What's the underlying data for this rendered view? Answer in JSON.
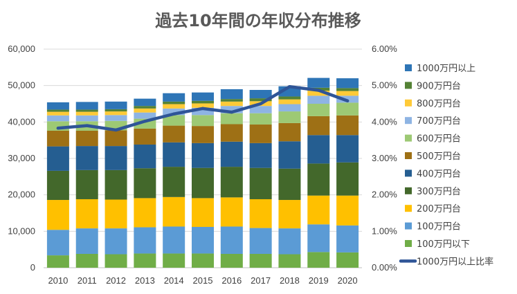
{
  "chart_data": {
    "type": "bar",
    "subtype": "stacked-bar-with-line",
    "title": "過去10年間の年収分布推移",
    "categories": [
      "2010",
      "2011",
      "2012",
      "2013",
      "2014",
      "2015",
      "2016",
      "2017",
      "2018",
      "2019",
      "2020"
    ],
    "series": [
      {
        "name": "100万円以下",
        "color": "#70AD47",
        "values": [
          3400,
          3800,
          3700,
          3900,
          3900,
          3900,
          3800,
          3800,
          3700,
          4300,
          4200
        ]
      },
      {
        "name": "100万円台",
        "color": "#5B9BD5",
        "values": [
          7000,
          7000,
          7100,
          7200,
          7400,
          7300,
          7500,
          7100,
          7100,
          7600,
          7400
        ]
      },
      {
        "name": "200万円台",
        "color": "#FFC000",
        "values": [
          8200,
          8000,
          7900,
          8000,
          8100,
          7900,
          8000,
          7900,
          7800,
          7900,
          8200
        ]
      },
      {
        "name": "300万円台",
        "color": "#43682B",
        "values": [
          8000,
          8000,
          8100,
          8200,
          8300,
          8300,
          8400,
          8600,
          8600,
          8800,
          9100
        ]
      },
      {
        "name": "400万円台",
        "color": "#255E91",
        "values": [
          6700,
          6600,
          6600,
          6500,
          6700,
          6800,
          6900,
          6800,
          7500,
          7800,
          7500
        ]
      },
      {
        "name": "500万円台",
        "color": "#9E7015",
        "values": [
          4300,
          4200,
          4300,
          4400,
          4600,
          4700,
          4800,
          5100,
          5000,
          5200,
          5400
        ]
      },
      {
        "name": "600万円台",
        "color": "#9DC974",
        "values": [
          2600,
          2600,
          2600,
          2700,
          2900,
          3000,
          3000,
          3100,
          3200,
          3400,
          3500
        ]
      },
      {
        "name": "700万円台",
        "color": "#8EB4E3",
        "values": [
          1600,
          1600,
          1600,
          1700,
          1800,
          2000,
          2000,
          2000,
          2000,
          2200,
          1900
        ]
      },
      {
        "name": "800万円台",
        "color": "#FFCA38",
        "values": [
          1000,
          1000,
          1000,
          1100,
          1200,
          1200,
          1200,
          1300,
          1300,
          1400,
          1300
        ]
      },
      {
        "name": "900万円台",
        "color": "#548235",
        "values": [
          600,
          600,
          600,
          700,
          700,
          700,
          700,
          800,
          800,
          800,
          800
        ]
      },
      {
        "name": "1000万円以上",
        "color": "#2E75B6",
        "values": [
          2000,
          2100,
          2100,
          2000,
          2300,
          2300,
          2700,
          2300,
          2800,
          2700,
          2700
        ]
      }
    ],
    "line_series": {
      "name": "1000万円以上比率",
      "color": "#2F5597",
      "axis": "right",
      "values": [
        3.83,
        3.9,
        3.78,
        4.02,
        4.22,
        4.37,
        4.27,
        4.5,
        4.97,
        4.87,
        4.58
      ]
    },
    "ylim": [
      0,
      60000
    ],
    "y_ticks": [
      "0",
      "10,000",
      "20,000",
      "30,000",
      "40,000",
      "50,000",
      "60,000"
    ],
    "y2lim": [
      0,
      6
    ],
    "y2_ticks": [
      "0.00%",
      "1.00%",
      "2.00%",
      "3.00%",
      "4.00%",
      "5.00%",
      "6.00%"
    ],
    "gridlines": true,
    "legend_position": "right",
    "legend_order": [
      "1000万円以上",
      "900万円台",
      "800万円台",
      "700万円台",
      "600万円台",
      "500万円台",
      "400万円台",
      "300万円台",
      "200万円台",
      "100万円台",
      "100万円以下",
      "1000万円以上比率"
    ]
  }
}
